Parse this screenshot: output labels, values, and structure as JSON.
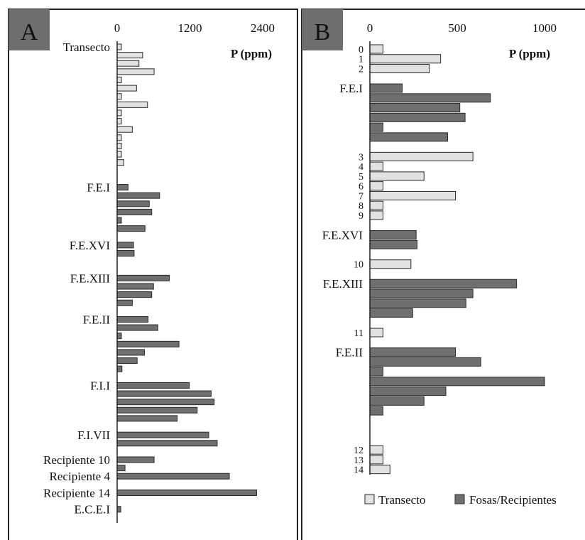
{
  "colors": {
    "transecto": "#e2e2e2",
    "fosas": "#6f6f6f",
    "stroke": "#2a2a2a",
    "panel_tag_bg": "#6e6e6e",
    "panel_tag_text": "#ffffff"
  },
  "chart_data": [
    {
      "type": "bar",
      "orientation": "horizontal",
      "panel": "A",
      "xlabel": "P (ppm)",
      "xlim": [
        0,
        2400
      ],
      "xticks": [
        "0",
        "1200",
        "2400"
      ],
      "legend": "none",
      "grid": false,
      "group_labels": [
        {
          "text": "Transecto",
          "row": 0
        },
        {
          "text": "F.E.I",
          "row": 17
        },
        {
          "text": "F.E.XVI",
          "row": 24
        },
        {
          "text": "F.E.XIII",
          "row": 28
        },
        {
          "text": "F.E.II",
          "row": 33
        },
        {
          "text": "F.I.I",
          "row": 41
        },
        {
          "text": "F.I.VII",
          "row": 47
        },
        {
          "text": "Recipiente 10",
          "row": 50
        },
        {
          "text": "Recipiente 4",
          "row": 52
        },
        {
          "text": "Recipiente 14",
          "row": 54
        },
        {
          "text": "E.C.E.I",
          "row": 56
        }
      ],
      "bars": [
        {
          "row": 0,
          "type": "transecto",
          "value": 70
        },
        {
          "row": 1,
          "type": "transecto",
          "value": 420
        },
        {
          "row": 2,
          "type": "transecto",
          "value": 360
        },
        {
          "row": 3,
          "type": "transecto",
          "value": 610
        },
        {
          "row": 4,
          "type": "transecto",
          "value": 70
        },
        {
          "row": 5,
          "type": "transecto",
          "value": 320
        },
        {
          "row": 6,
          "type": "transecto",
          "value": 70
        },
        {
          "row": 7,
          "type": "transecto",
          "value": 500
        },
        {
          "row": 8,
          "type": "transecto",
          "value": 70
        },
        {
          "row": 9,
          "type": "transecto",
          "value": 70
        },
        {
          "row": 10,
          "type": "transecto",
          "value": 250
        },
        {
          "row": 11,
          "type": "transecto",
          "value": 70
        },
        {
          "row": 12,
          "type": "transecto",
          "value": 70
        },
        {
          "row": 13,
          "type": "transecto",
          "value": 70
        },
        {
          "row": 14,
          "type": "transecto",
          "value": 110
        },
        {
          "row": 17,
          "type": "fosas",
          "value": 180
        },
        {
          "row": 18,
          "type": "fosas",
          "value": 700
        },
        {
          "row": 19,
          "type": "fosas",
          "value": 530
        },
        {
          "row": 20,
          "type": "fosas",
          "value": 570
        },
        {
          "row": 21,
          "type": "fosas",
          "value": 70
        },
        {
          "row": 22,
          "type": "fosas",
          "value": 460
        },
        {
          "row": 24,
          "type": "fosas",
          "value": 270
        },
        {
          "row": 25,
          "type": "fosas",
          "value": 280
        },
        {
          "row": 28,
          "type": "fosas",
          "value": 860
        },
        {
          "row": 29,
          "type": "fosas",
          "value": 600
        },
        {
          "row": 30,
          "type": "fosas",
          "value": 570
        },
        {
          "row": 31,
          "type": "fosas",
          "value": 250
        },
        {
          "row": 33,
          "type": "fosas",
          "value": 510
        },
        {
          "row": 34,
          "type": "fosas",
          "value": 670
        },
        {
          "row": 35,
          "type": "fosas",
          "value": 70
        },
        {
          "row": 36,
          "type": "fosas",
          "value": 1020
        },
        {
          "row": 37,
          "type": "fosas",
          "value": 450
        },
        {
          "row": 38,
          "type": "fosas",
          "value": 330
        },
        {
          "row": 39,
          "type": "fosas",
          "value": 80
        },
        {
          "row": 41,
          "type": "fosas",
          "value": 1190
        },
        {
          "row": 42,
          "type": "fosas",
          "value": 1550
        },
        {
          "row": 43,
          "type": "fosas",
          "value": 1600
        },
        {
          "row": 44,
          "type": "fosas",
          "value": 1320
        },
        {
          "row": 45,
          "type": "fosas",
          "value": 990
        },
        {
          "row": 47,
          "type": "fosas",
          "value": 1510
        },
        {
          "row": 48,
          "type": "fosas",
          "value": 1650
        },
        {
          "row": 50,
          "type": "fosas",
          "value": 610
        },
        {
          "row": 51,
          "type": "fosas",
          "value": 130
        },
        {
          "row": 52,
          "type": "fosas",
          "value": 1850
        },
        {
          "row": 54,
          "type": "fosas",
          "value": 2300
        },
        {
          "row": 56,
          "type": "fosas",
          "value": 60
        }
      ]
    },
    {
      "type": "bar",
      "orientation": "horizontal",
      "panel": "B",
      "xlabel": "P (ppm)",
      "xlim": [
        0,
        1000
      ],
      "xticks": [
        "0",
        "500",
        "1000"
      ],
      "legend": "bottom",
      "grid": false,
      "series": [
        {
          "name": "Transecto",
          "key": "transecto"
        },
        {
          "name": "Fosas/Recipientes",
          "key": "fosas"
        }
      ],
      "row_labels": [
        {
          "text": "0",
          "row": 0,
          "size": "small"
        },
        {
          "text": "1",
          "row": 1,
          "size": "small"
        },
        {
          "text": "2",
          "row": 2,
          "size": "small"
        },
        {
          "text": "F.E.I",
          "row": 4,
          "size": "large"
        },
        {
          "text": "3",
          "row": 11,
          "size": "small"
        },
        {
          "text": "4",
          "row": 12,
          "size": "small"
        },
        {
          "text": "5",
          "row": 13,
          "size": "small"
        },
        {
          "text": "6",
          "row": 14,
          "size": "small"
        },
        {
          "text": "7",
          "row": 15,
          "size": "small"
        },
        {
          "text": "8",
          "row": 16,
          "size": "small"
        },
        {
          "text": "9",
          "row": 17,
          "size": "small"
        },
        {
          "text": "F.E.XVI",
          "row": 19,
          "size": "large"
        },
        {
          "text": "10",
          "row": 22,
          "size": "small"
        },
        {
          "text": "F.E.XIII",
          "row": 24,
          "size": "large"
        },
        {
          "text": "11",
          "row": 29,
          "size": "small"
        },
        {
          "text": "F.E.II",
          "row": 31,
          "size": "large"
        },
        {
          "text": "12",
          "row": 41,
          "size": "small"
        },
        {
          "text": "13",
          "row": 42,
          "size": "small"
        },
        {
          "text": "14",
          "row": 43,
          "size": "small"
        }
      ],
      "bars": [
        {
          "row": 0,
          "type": "transecto",
          "value": 75
        },
        {
          "row": 1,
          "type": "transecto",
          "value": 405
        },
        {
          "row": 2,
          "type": "transecto",
          "value": 340
        },
        {
          "row": 4,
          "type": "fosas",
          "value": 185
        },
        {
          "row": 5,
          "type": "fosas",
          "value": 690
        },
        {
          "row": 6,
          "type": "fosas",
          "value": 515
        },
        {
          "row": 7,
          "type": "fosas",
          "value": 545
        },
        {
          "row": 8,
          "type": "fosas",
          "value": 75
        },
        {
          "row": 9,
          "type": "fosas",
          "value": 445
        },
        {
          "row": 11,
          "type": "transecto",
          "value": 590
        },
        {
          "row": 12,
          "type": "transecto",
          "value": 75
        },
        {
          "row": 13,
          "type": "transecto",
          "value": 310
        },
        {
          "row": 14,
          "type": "transecto",
          "value": 75
        },
        {
          "row": 15,
          "type": "transecto",
          "value": 490
        },
        {
          "row": 16,
          "type": "transecto",
          "value": 75
        },
        {
          "row": 17,
          "type": "transecto",
          "value": 75
        },
        {
          "row": 19,
          "type": "fosas",
          "value": 265
        },
        {
          "row": 20,
          "type": "fosas",
          "value": 270
        },
        {
          "row": 22,
          "type": "transecto",
          "value": 235
        },
        {
          "row": 24,
          "type": "fosas",
          "value": 840
        },
        {
          "row": 25,
          "type": "fosas",
          "value": 590
        },
        {
          "row": 26,
          "type": "fosas",
          "value": 550
        },
        {
          "row": 27,
          "type": "fosas",
          "value": 245
        },
        {
          "row": 29,
          "type": "transecto",
          "value": 75
        },
        {
          "row": 31,
          "type": "fosas",
          "value": 490
        },
        {
          "row": 32,
          "type": "fosas",
          "value": 635
        },
        {
          "row": 33,
          "type": "fosas",
          "value": 75
        },
        {
          "row": 34,
          "type": "fosas",
          "value": 1000
        },
        {
          "row": 35,
          "type": "fosas",
          "value": 435
        },
        {
          "row": 36,
          "type": "fosas",
          "value": 310
        },
        {
          "row": 37,
          "type": "fosas",
          "value": 75
        },
        {
          "row": 41,
          "type": "transecto",
          "value": 75
        },
        {
          "row": 42,
          "type": "transecto",
          "value": 75
        },
        {
          "row": 43,
          "type": "transecto",
          "value": 115
        }
      ]
    }
  ]
}
